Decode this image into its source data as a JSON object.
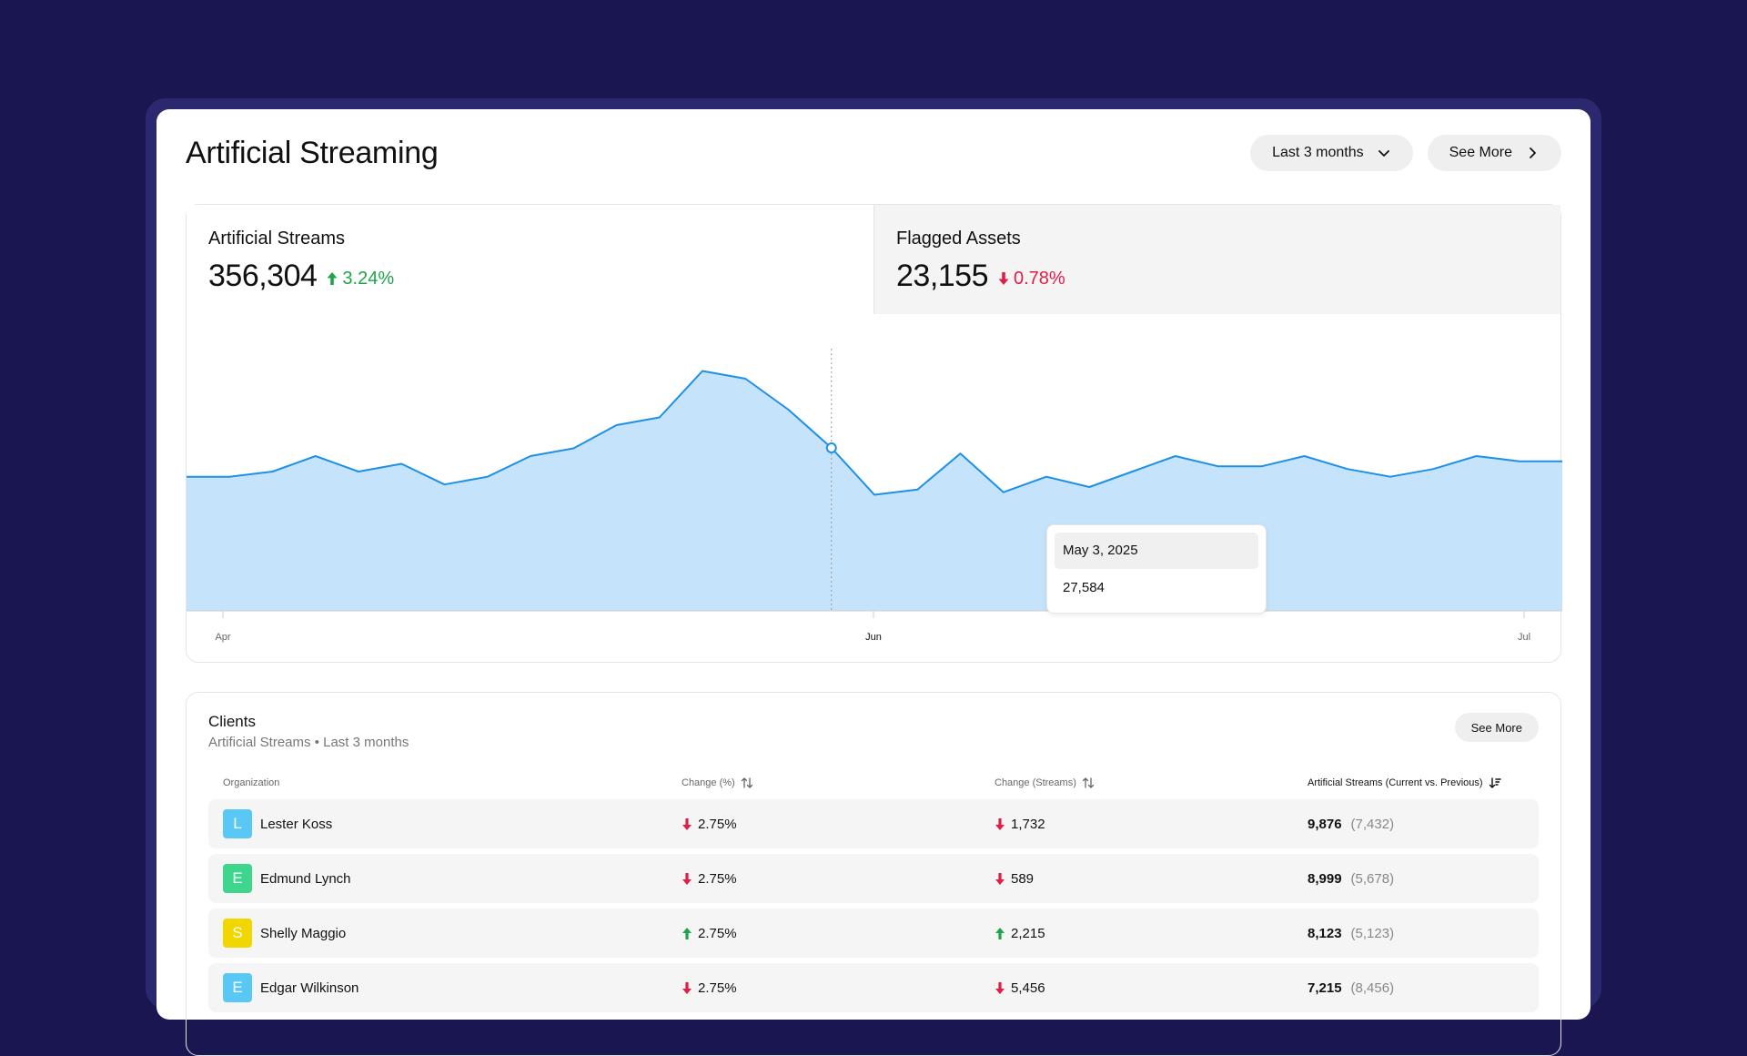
{
  "header": {
    "title": "Artificial Streaming",
    "range_label": "Last 3 months",
    "see_more_label": "See More"
  },
  "kpis": [
    {
      "label": "Artificial Streams",
      "value": "356,304",
      "delta": "3.24%",
      "direction": "up"
    },
    {
      "label": "Flagged Assets",
      "value": "23,155",
      "delta": "0.78%",
      "direction": "down"
    }
  ],
  "colors": {
    "background": "#1a1652",
    "area_fill": "#c5e3fa",
    "line": "#1e90e6",
    "up": "#1ea54a",
    "down": "#e11d48"
  },
  "chart_data": {
    "type": "area",
    "x_ticks": [
      "Apr",
      "Jun",
      "Jul"
    ],
    "values": [
      22,
      22,
      23,
      26,
      23,
      24.5,
      20.5,
      22,
      26,
      27.5,
      32,
      33.5,
      42.5,
      41,
      35,
      27.584,
      18.5,
      19.5,
      26.5,
      19,
      22,
      20,
      23,
      26,
      24,
      24,
      26,
      23.5,
      22,
      23.5,
      26,
      25,
      25
    ],
    "highlight_index": 15,
    "ylim": [
      -4,
      50
    ],
    "grid": false,
    "legend": "none"
  },
  "tooltip": {
    "date": "May 3, 2025",
    "value": "27,584"
  },
  "clients": {
    "title": "Clients",
    "subtitle": "Artificial Streams • Last 3 months",
    "see_more_label": "See More",
    "columns": [
      "Organization",
      "Change (%)",
      "Change (Streams)",
      "Artificial Streams (Current vs. Previous)"
    ],
    "rows": [
      {
        "initial": "L",
        "color": "#5ac8f5",
        "name": "Lester Koss",
        "change_pct": "2.75%",
        "pct_dir": "down",
        "change_streams": "1,732",
        "streams_dir": "down",
        "current": "9,876",
        "previous": "(7,432)"
      },
      {
        "initial": "E",
        "color": "#3dd68c",
        "name": "Edmund Lynch",
        "change_pct": "2.75%",
        "pct_dir": "down",
        "change_streams": "589",
        "streams_dir": "down",
        "current": "8,999",
        "previous": "(5,678)"
      },
      {
        "initial": "S",
        "color": "#f2d600",
        "name": "Shelly Maggio",
        "change_pct": "2.75%",
        "pct_dir": "up",
        "change_streams": "2,215",
        "streams_dir": "up",
        "current": "8,123",
        "previous": "(5,123)"
      },
      {
        "initial": "E",
        "color": "#5ac8f5",
        "name": "Edgar Wilkinson",
        "change_pct": "2.75%",
        "pct_dir": "down",
        "change_streams": "5,456",
        "streams_dir": "down",
        "current": "7,215",
        "previous": "(8,456)"
      }
    ]
  }
}
